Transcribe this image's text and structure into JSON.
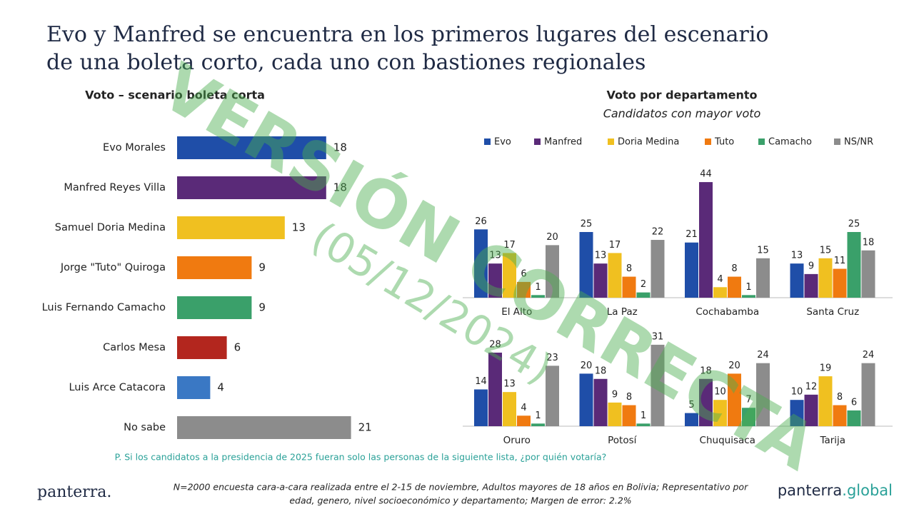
{
  "title": [
    "Evo y Manfred se encuentra en los primeros lugares del escenario",
    "de una boleta corto, cada uno con bastiones regionales"
  ],
  "watermark": [
    "VERSIÓN CORRECTA",
    "(05/12/2024)"
  ],
  "question": "P. Si los candidatos a la presidencia de 2025 fueran solo las personas de la siguiente lista, ¿por quién votaría?",
  "footnote": [
    "N=2000 encuesta cara-a-cara realizada entre el 2-15 de noviembre, Adultos mayores de 18 años en Bolivia; Representativo por",
    "edad, genero, nivel socioeconómico y departamento; Margen de error: 2.2%"
  ],
  "logo_left": "panterra.",
  "logo_right": {
    "name": "panterra",
    "suffix": ".global"
  },
  "chart_data": [
    {
      "type": "barh",
      "title": "Voto – scenario boleta corta",
      "categories": [
        "Evo Morales",
        "Manfred Reyes Villa",
        "Samuel Doria Medina",
        "Jorge \"Tuto\" Quiroga",
        "Luis Fernando Camacho",
        "Carlos Mesa",
        "Luis Arce Catacora",
        "No sabe"
      ],
      "values": [
        18,
        18,
        13,
        9,
        9,
        6,
        4,
        21
      ],
      "colors": [
        "#1f4ea8",
        "#5a2a78",
        "#f0c020",
        "#f07a10",
        "#3aa06a",
        "#b3261e",
        "#3a78c4",
        "#8c8c8c"
      ],
      "xlim": [
        0,
        25
      ]
    },
    {
      "type": "grouped-bar",
      "title": "Voto por departamento",
      "subtitle": "Candidatos con mayor voto",
      "categories": [
        "El Alto",
        "La Paz",
        "Cochabamba",
        "Santa Cruz",
        "Oruro",
        "Potosí",
        "Chuquisaca",
        "Tarija"
      ],
      "series": [
        {
          "name": "Evo",
          "color": "#1f4ea8",
          "values": [
            26,
            25,
            21,
            13,
            14,
            20,
            5,
            10
          ]
        },
        {
          "name": "Manfred",
          "color": "#5a2a78",
          "values": [
            13,
            13,
            44,
            9,
            28,
            18,
            18,
            12
          ]
        },
        {
          "name": "Doria Medina",
          "color": "#f0c020",
          "values": [
            17,
            17,
            4,
            15,
            13,
            9,
            10,
            19
          ]
        },
        {
          "name": "Tuto",
          "color": "#f07a10",
          "values": [
            6,
            8,
            8,
            11,
            4,
            8,
            20,
            8
          ]
        },
        {
          "name": "Camacho",
          "color": "#3aa06a",
          "values": [
            1,
            2,
            1,
            25,
            1,
            1,
            7,
            6
          ]
        },
        {
          "name": "NS/NR",
          "color": "#8c8c8c",
          "values": [
            20,
            22,
            15,
            18,
            23,
            31,
            24,
            24
          ]
        }
      ],
      "ylim": [
        0,
        50
      ]
    }
  ]
}
